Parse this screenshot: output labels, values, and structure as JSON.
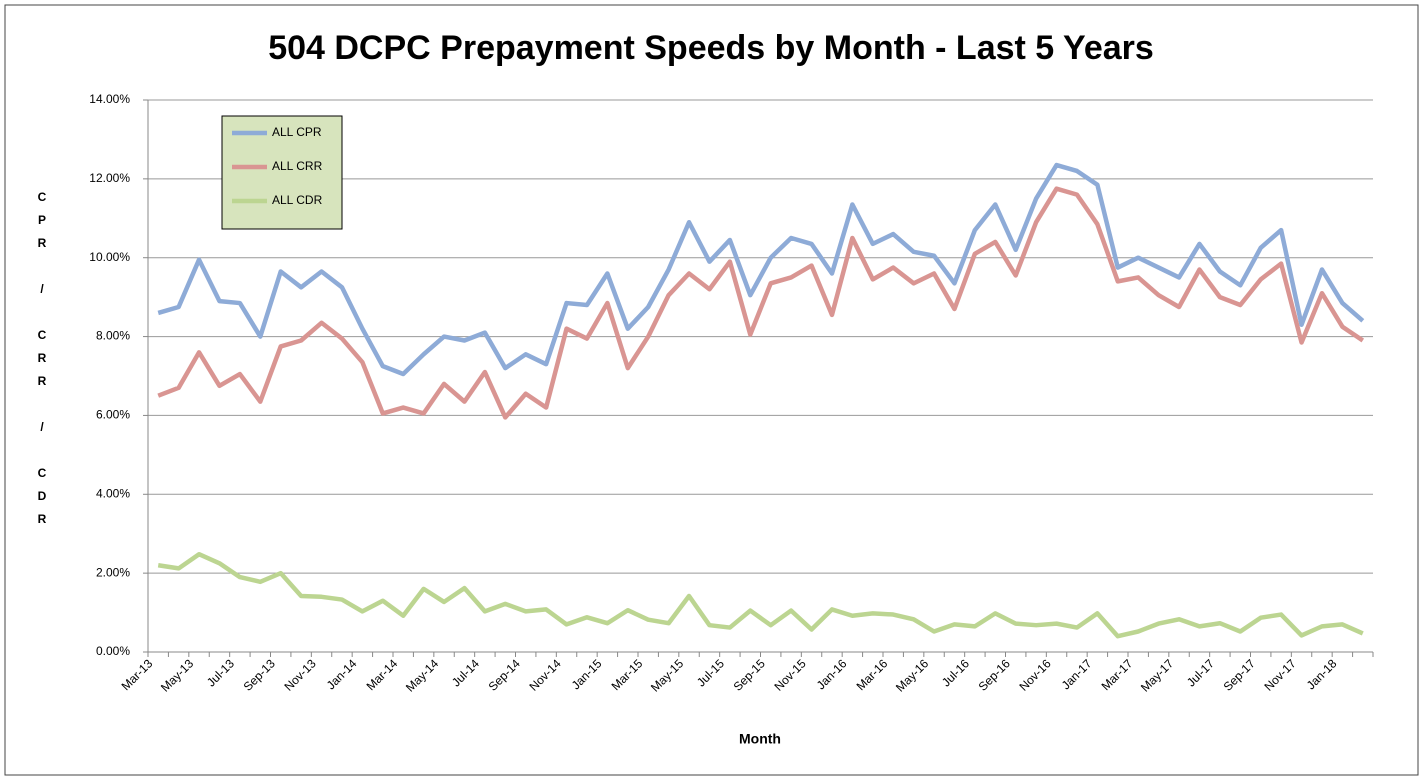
{
  "chart_data": {
    "type": "line",
    "title": "504 DCPC Prepayment Speeds by Month - Last 5 Years",
    "x_label": "Month",
    "y_label": "CPR / CRR / CDR",
    "categories": [
      "Mar-13",
      null,
      "May-13",
      null,
      "Jul-13",
      null,
      "Sep-13",
      null,
      "Nov-13",
      null,
      "Jan-14",
      null,
      "Mar-14",
      null,
      "May-14",
      null,
      "Jul-14",
      null,
      "Sep-14",
      null,
      "Nov-14",
      null,
      "Jan-15",
      null,
      "Mar-15",
      null,
      "May-15",
      null,
      "Jul-15",
      null,
      "Sep-15",
      null,
      "Nov-15",
      null,
      "Jan-16",
      null,
      "Mar-16",
      null,
      "May-16",
      null,
      "Jul-16",
      null,
      "Sep-16",
      null,
      "Nov-16",
      null,
      "Jan-17",
      null,
      "Mar-17",
      null,
      "May-17",
      null,
      "Jul-17",
      null,
      "Sep-17",
      null,
      "Nov-17",
      null,
      "Jan-18",
      null
    ],
    "series": [
      {
        "name": "ALL CPR",
        "color": "#8eabd7",
        "values": [
          8.6,
          8.75,
          9.95,
          8.9,
          8.85,
          8.0,
          9.65,
          9.25,
          9.65,
          9.25,
          8.2,
          7.25,
          7.05,
          7.55,
          8.0,
          7.9,
          8.1,
          7.2,
          7.55,
          7.3,
          8.85,
          8.8,
          9.6,
          8.2,
          8.75,
          9.7,
          10.9,
          9.9,
          10.45,
          9.05,
          10.0,
          10.5,
          10.35,
          9.6,
          11.35,
          10.35,
          10.6,
          10.15,
          10.05,
          9.35,
          10.7,
          11.35,
          10.2,
          11.5,
          12.35,
          12.2,
          11.85,
          9.75,
          10.0,
          9.75,
          9.5,
          10.35,
          9.65,
          9.3,
          10.25,
          10.7,
          8.3,
          9.7,
          8.85,
          8.4
        ]
      },
      {
        "name": "ALL CRR",
        "color": "#d99592",
        "values": [
          6.5,
          6.7,
          7.6,
          6.75,
          7.05,
          6.35,
          7.75,
          7.9,
          8.35,
          7.95,
          7.35,
          6.05,
          6.2,
          6.05,
          6.8,
          6.35,
          7.1,
          5.95,
          6.55,
          6.2,
          8.2,
          7.95,
          8.85,
          7.2,
          8.0,
          9.05,
          9.6,
          9.2,
          9.9,
          8.05,
          9.35,
          9.5,
          9.8,
          8.55,
          10.5,
          9.45,
          9.75,
          9.35,
          9.6,
          8.7,
          10.1,
          10.4,
          9.55,
          10.9,
          11.75,
          11.6,
          10.85,
          9.4,
          9.5,
          9.05,
          8.75,
          9.7,
          9.0,
          8.8,
          9.45,
          9.85,
          7.85,
          9.1,
          8.25,
          7.9
        ]
      },
      {
        "name": "ALL CDR",
        "color": "#bcd591",
        "values": [
          2.2,
          2.12,
          2.48,
          2.25,
          1.9,
          1.78,
          2.0,
          1.42,
          1.4,
          1.33,
          1.03,
          1.3,
          0.92,
          1.6,
          1.27,
          1.62,
          1.03,
          1.22,
          1.03,
          1.08,
          0.7,
          0.88,
          0.73,
          1.06,
          0.82,
          0.73,
          1.42,
          0.68,
          0.62,
          1.05,
          0.68,
          1.05,
          0.57,
          1.08,
          0.92,
          0.98,
          0.95,
          0.83,
          0.52,
          0.7,
          0.65,
          0.98,
          0.72,
          0.68,
          0.72,
          0.62,
          0.98,
          0.4,
          0.52,
          0.72,
          0.83,
          0.65,
          0.73,
          0.52,
          0.87,
          0.95,
          0.42,
          0.65,
          0.7,
          0.47
        ]
      }
    ],
    "ylim": [
      0,
      14
    ],
    "yticks": [
      {
        "value": 0,
        "label": "0.00%"
      },
      {
        "value": 2,
        "label": "2.00%"
      },
      {
        "value": 4,
        "label": "4.00%"
      },
      {
        "value": 6,
        "label": "6.00%"
      },
      {
        "value": 8,
        "label": "8.00%"
      },
      {
        "value": 10,
        "label": "10.00%"
      },
      {
        "value": 12,
        "label": "12.00%"
      },
      {
        "value": 14,
        "label": "14.00%"
      }
    ],
    "grid": true,
    "legend": "upper left",
    "legend_color": "#d7e4bd"
  }
}
